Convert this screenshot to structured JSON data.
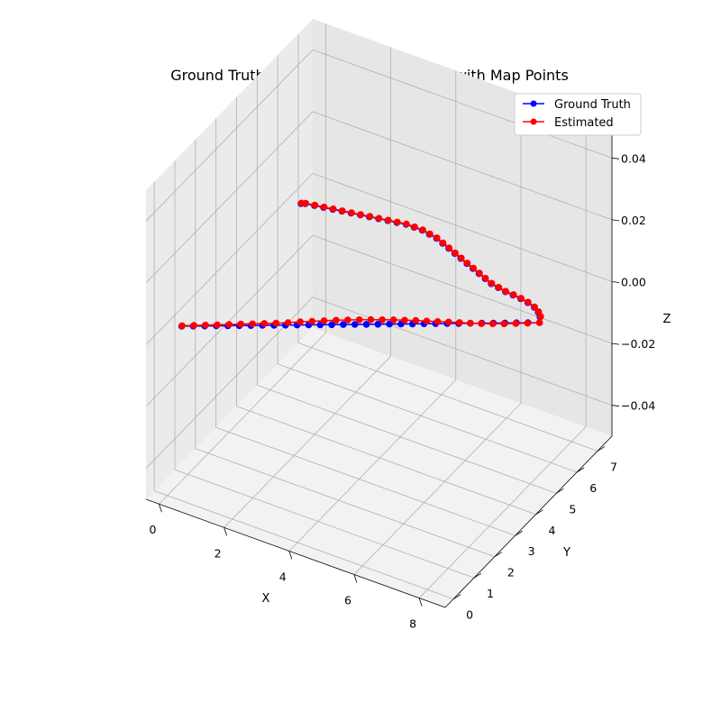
{
  "chart_data": {
    "type": "line",
    "projection": "3d",
    "title": "Ground Truth vs Estimated Trajectories with Map Points",
    "xlabel": "X",
    "ylabel": "Y",
    "zlabel": "Z",
    "xlim": [
      -0.4,
      8.8
    ],
    "ylim": [
      -0.4,
      7.7
    ],
    "zlim": [
      -0.05,
      0.05
    ],
    "xticks": [
      "0",
      "2",
      "4",
      "6",
      "8"
    ],
    "xtick_values": [
      0,
      2,
      4,
      6,
      8
    ],
    "yticks": [
      "0",
      "1",
      "2",
      "3",
      "4",
      "5",
      "6",
      "7"
    ],
    "ytick_values": [
      0,
      1,
      2,
      3,
      4,
      5,
      6,
      7
    ],
    "zticks": [
      "−0.04",
      "−0.02",
      "0.00",
      "0.02",
      "0.04"
    ],
    "ztick_values": [
      -0.04,
      -0.02,
      0.0,
      0.02,
      0.04
    ],
    "grid": true,
    "legend_position": "top-right",
    "colors": {
      "ground_truth": "#0000ff",
      "estimated": "#ff0000",
      "pane_left": "#ebebeb",
      "pane_right": "#e6e6e6",
      "pane_floor": "#f2f2f2",
      "grid": "#b0b0b0"
    },
    "series": [
      {
        "name": "Ground Truth",
        "key": "gt",
        "color": "#0000ff",
        "marker": "o",
        "x": [
          0.0,
          0.26,
          0.52,
          0.78,
          1.04,
          1.3,
          1.56,
          1.82,
          2.08,
          2.34,
          2.6,
          2.86,
          3.12,
          3.38,
          3.64,
          3.9,
          4.16,
          4.42,
          4.68,
          4.94,
          5.2,
          5.46,
          5.72,
          5.98,
          6.24,
          6.5,
          6.76,
          7.02,
          7.28,
          7.54,
          7.8,
          8.06,
          7.95,
          7.8,
          7.6,
          7.35,
          7.1,
          6.85,
          6.6,
          6.35,
          6.1,
          5.85,
          5.6,
          5.35,
          5.1,
          4.85,
          4.6,
          4.35,
          4.1,
          3.85,
          3.6,
          3.35,
          3.1,
          2.85,
          2.6,
          2.35,
          2.1,
          1.85,
          1.6,
          1.35,
          1.1,
          0.85,
          0.6,
          0.35,
          0.1,
          0.0
        ],
        "y": [
          0.7,
          0.85,
          1.0,
          1.15,
          1.3,
          1.45,
          1.6,
          1.75,
          1.9,
          2.05,
          2.2,
          2.35,
          2.5,
          2.65,
          2.8,
          2.95,
          3.1,
          3.25,
          3.4,
          3.55,
          3.7,
          3.85,
          4.0,
          4.15,
          4.3,
          4.45,
          4.6,
          4.75,
          4.9,
          5.05,
          5.2,
          5.35,
          5.55,
          5.7,
          5.82,
          5.9,
          5.95,
          5.98,
          6.0,
          6.05,
          6.1,
          6.2,
          6.3,
          6.4,
          6.5,
          6.6,
          6.7,
          6.8,
          6.9,
          7.0,
          7.05,
          7.1,
          7.1,
          7.1,
          7.05,
          7.0,
          6.95,
          6.9,
          6.85,
          6.8,
          6.75,
          6.7,
          6.65,
          6.6,
          6.55,
          6.5
        ],
        "z": [
          0,
          0,
          0,
          0,
          0,
          0,
          0,
          0,
          0,
          0,
          0,
          0,
          0,
          0,
          0,
          0,
          0,
          0,
          0,
          0,
          0,
          0,
          0,
          0,
          0,
          0,
          0,
          0,
          0,
          0,
          0,
          0,
          0,
          0,
          0,
          0,
          0,
          0,
          0,
          0,
          0,
          0,
          0,
          0,
          0,
          0,
          0,
          0,
          0,
          0,
          0,
          0,
          0,
          0,
          0,
          0,
          0,
          0,
          0,
          0,
          0,
          0,
          0,
          0,
          0,
          0
        ]
      },
      {
        "name": "Estimated",
        "key": "est",
        "color": "#ff0000",
        "marker": "o",
        "x": [
          0.0,
          0.26,
          0.52,
          0.78,
          1.04,
          1.3,
          1.56,
          1.82,
          2.08,
          2.34,
          2.6,
          2.86,
          3.12,
          3.38,
          3.64,
          3.9,
          4.16,
          4.42,
          4.68,
          4.94,
          5.2,
          5.46,
          5.72,
          5.98,
          6.24,
          6.5,
          6.76,
          7.02,
          7.28,
          7.54,
          7.8,
          8.06,
          7.95,
          7.8,
          7.6,
          7.35,
          7.1,
          6.85,
          6.6,
          6.35,
          6.1,
          5.85,
          5.6,
          5.35,
          5.1,
          4.85,
          4.6,
          4.35,
          4.1,
          3.85,
          3.6,
          3.35,
          3.1,
          2.85,
          2.6,
          2.35,
          2.1,
          1.85,
          1.6,
          1.35,
          1.1,
          0.85,
          0.6,
          0.35,
          0.1,
          0.0
        ],
        "y": [
          0.72,
          0.88,
          1.04,
          1.2,
          1.36,
          1.52,
          1.68,
          1.84,
          2.0,
          2.17,
          2.35,
          2.52,
          2.69,
          2.86,
          3.02,
          3.17,
          3.32,
          3.46,
          3.6,
          3.73,
          3.86,
          3.98,
          4.1,
          4.22,
          4.34,
          4.46,
          4.58,
          4.72,
          4.86,
          5.02,
          5.18,
          5.35,
          5.58,
          5.72,
          5.84,
          5.92,
          5.97,
          6.0,
          6.02,
          6.07,
          6.12,
          6.22,
          6.32,
          6.42,
          6.52,
          6.62,
          6.72,
          6.82,
          6.92,
          7.02,
          7.07,
          7.12,
          7.12,
          7.12,
          7.07,
          7.02,
          6.97,
          6.92,
          6.87,
          6.82,
          6.77,
          6.72,
          6.67,
          6.62,
          6.57,
          6.52
        ],
        "z": [
          0,
          0,
          0,
          0,
          0,
          0,
          0,
          0,
          0,
          0,
          0,
          0,
          0,
          0,
          0,
          0,
          0,
          0,
          0,
          0,
          0,
          0,
          0,
          0,
          0,
          0,
          0,
          0,
          0,
          0,
          0,
          0,
          0,
          0,
          0,
          0,
          0,
          0,
          0,
          0,
          0,
          0,
          0,
          0,
          0,
          0,
          0,
          0,
          0,
          0,
          0,
          0,
          0,
          0,
          0,
          0,
          0,
          0,
          0,
          0,
          0,
          0,
          0,
          0,
          0,
          0
        ]
      }
    ]
  }
}
